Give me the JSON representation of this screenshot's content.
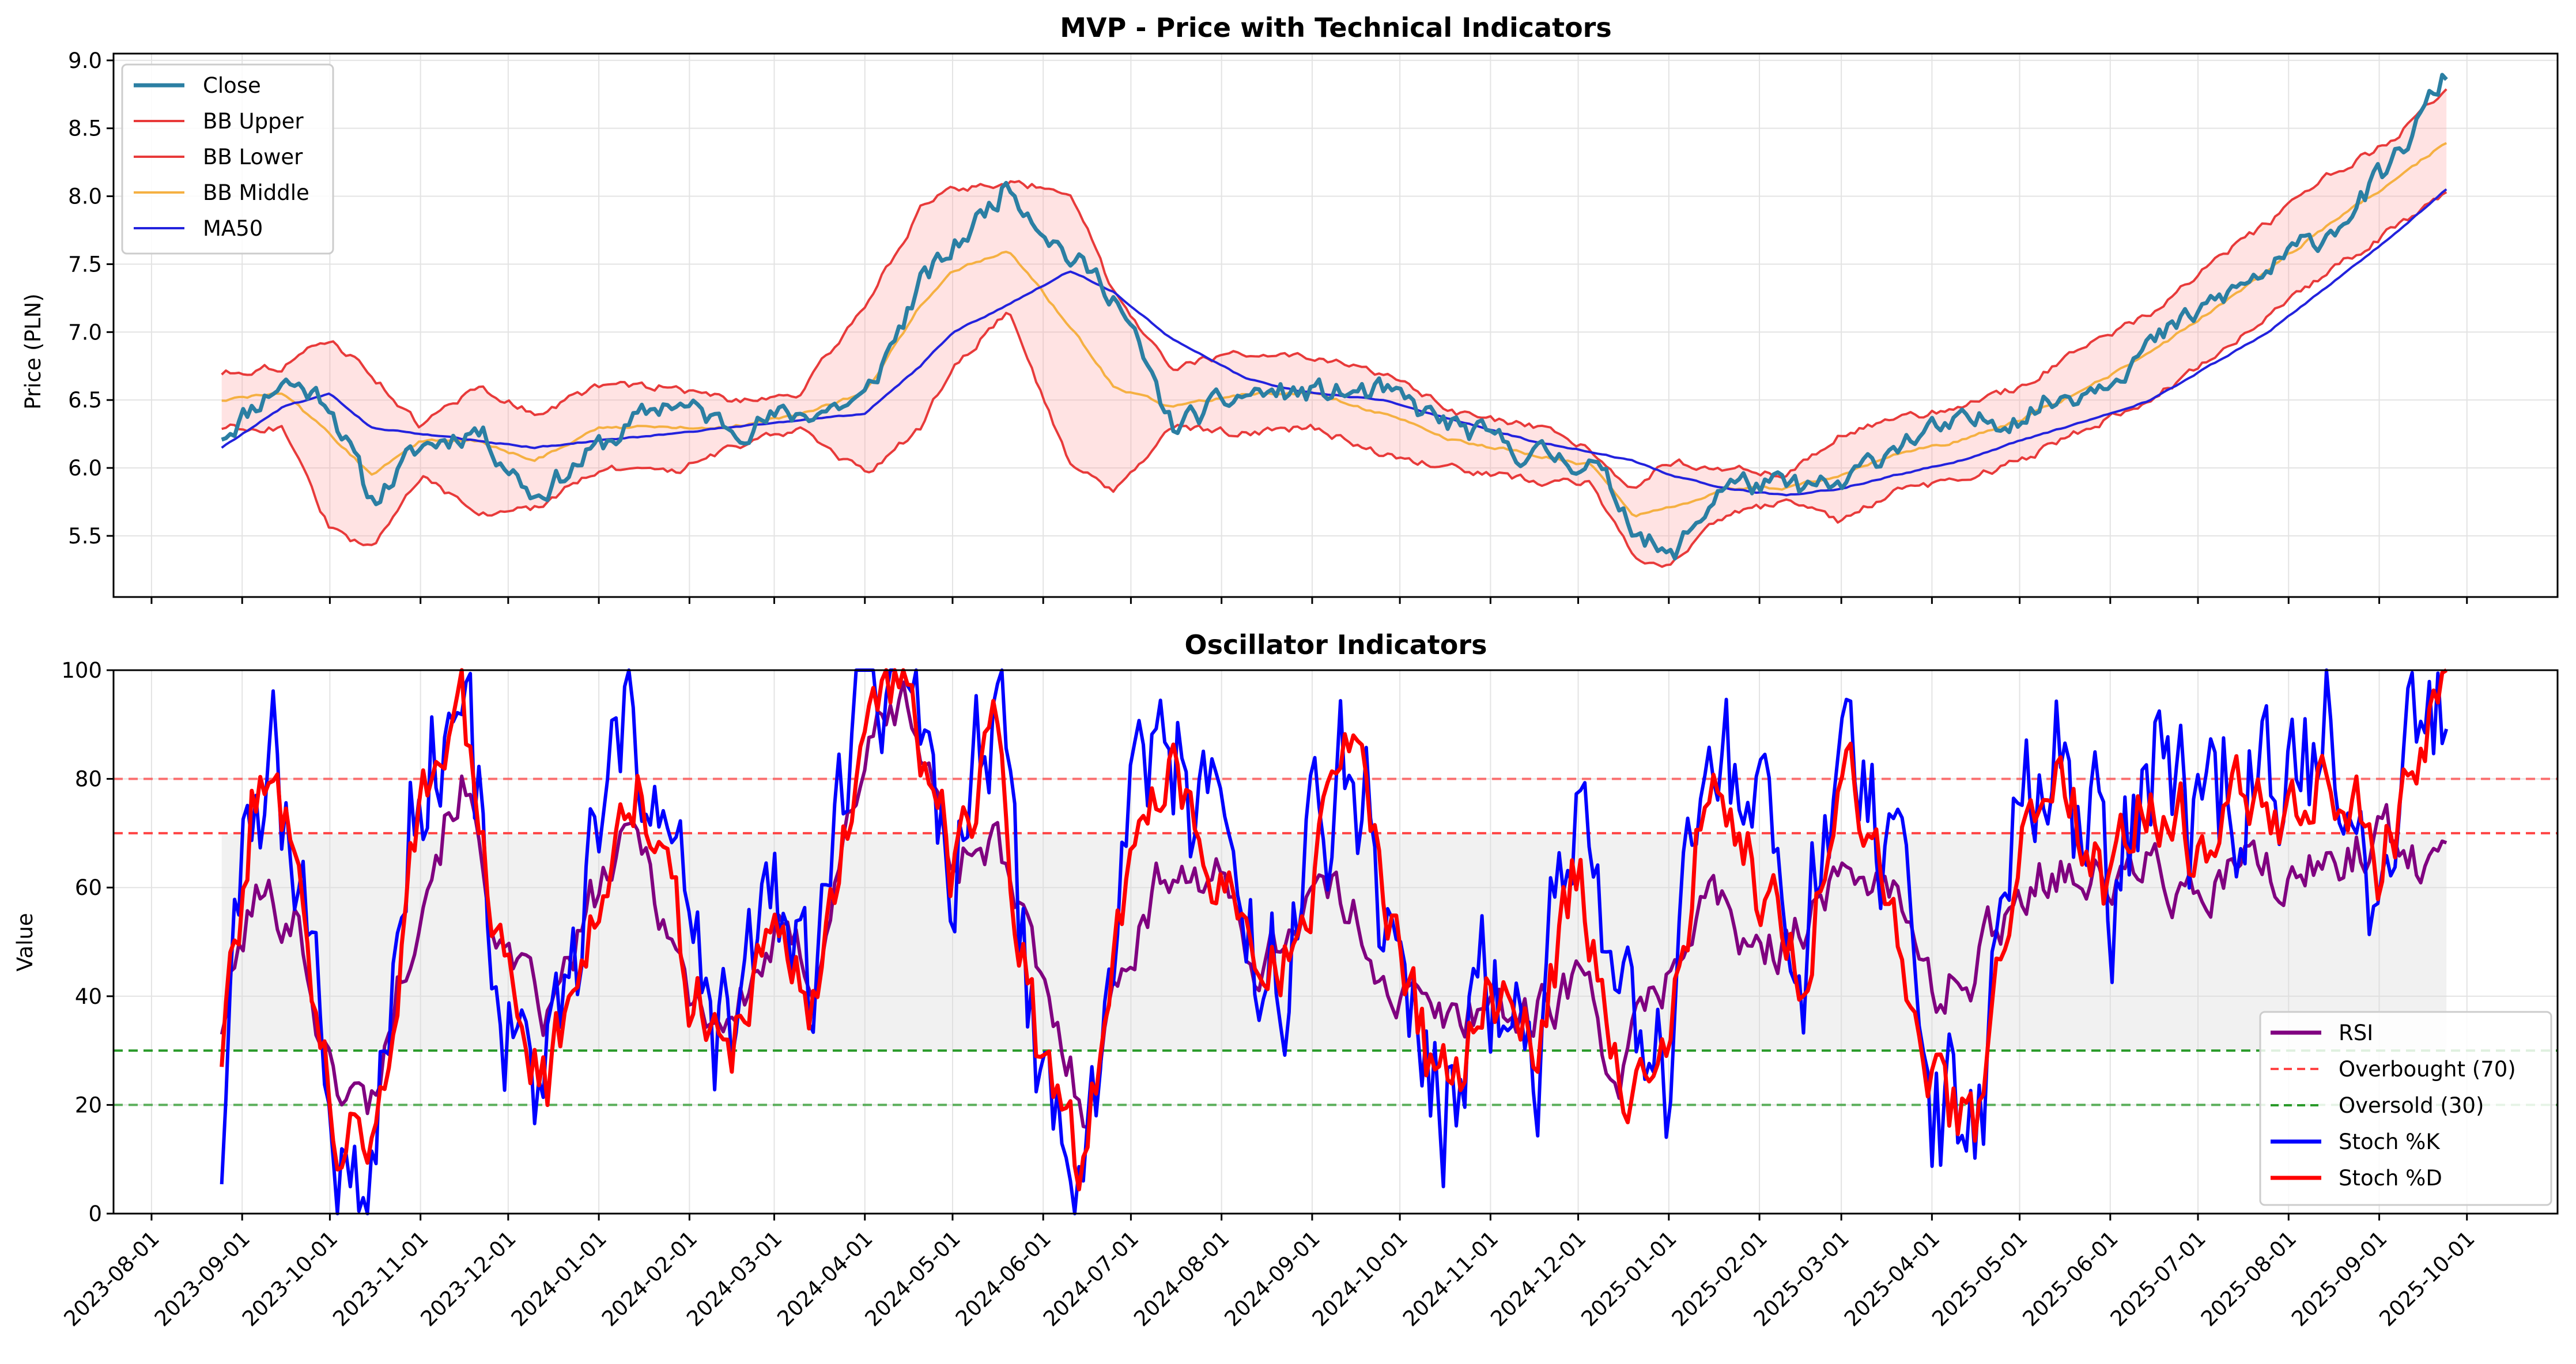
{
  "chart_data": [
    {
      "type": "line",
      "title": "MVP - Price with Technical Indicators",
      "xlabel": "",
      "ylabel": "Price (PLN)",
      "ylim": [
        5.05,
        9.05
      ],
      "yticks": [
        "5.5",
        "6.0",
        "6.5",
        "7.0",
        "7.5",
        "8.0",
        "8.5",
        "9.0"
      ],
      "x_start": "2023-08-25",
      "x_end": "2025-09-24",
      "grid": true,
      "legend_position": "upper-left",
      "fill_between": [
        "BB Upper",
        "BB Lower"
      ],
      "x_knots": [
        "2023-08-25",
        "2023-09-15",
        "2023-10-01",
        "2023-10-15",
        "2023-11-01",
        "2023-11-20",
        "2023-12-10",
        "2024-01-01",
        "2024-01-25",
        "2024-02-15",
        "2024-03-10",
        "2024-04-01",
        "2024-04-20",
        "2024-05-01",
        "2024-05-20",
        "2024-06-10",
        "2024-06-25",
        "2024-07-15",
        "2024-08-10",
        "2024-09-01",
        "2024-09-25",
        "2024-10-20",
        "2024-11-15",
        "2024-12-05",
        "2024-12-20",
        "2025-01-01",
        "2025-01-20",
        "2025-02-10",
        "2025-03-01",
        "2025-03-20",
        "2025-04-10",
        "2025-05-01",
        "2025-05-25",
        "2025-06-15",
        "2025-07-05",
        "2025-07-25",
        "2025-08-15",
        "2025-09-05",
        "2025-09-24"
      ],
      "series": [
        {
          "name": "Close",
          "color": "#2b7fa3",
          "values": [
            6.25,
            6.65,
            6.5,
            5.75,
            6.15,
            6.3,
            5.8,
            6.15,
            6.5,
            6.3,
            6.4,
            6.5,
            7.35,
            7.6,
            8.1,
            7.55,
            7.3,
            6.3,
            6.55,
            6.55,
            6.55,
            6.3,
            6.1,
            6.05,
            5.6,
            5.3,
            5.9,
            5.85,
            5.85,
            6.2,
            6.3,
            6.4,
            6.6,
            6.9,
            7.2,
            7.45,
            7.75,
            8.2,
            8.9
          ]
        },
        {
          "name": "BB Upper",
          "color": "#e83a3a",
          "values": [
            6.7,
            6.75,
            6.95,
            6.7,
            6.3,
            6.6,
            6.4,
            6.6,
            6.6,
            6.5,
            6.55,
            7.2,
            7.9,
            8.05,
            8.1,
            8.05,
            7.3,
            6.75,
            6.85,
            6.8,
            6.7,
            6.4,
            6.3,
            6.15,
            5.85,
            6.05,
            6.0,
            5.95,
            6.25,
            6.35,
            6.45,
            6.6,
            6.9,
            7.15,
            7.5,
            7.8,
            8.15,
            8.4,
            8.8
          ]
        },
        {
          "name": "BB Lower",
          "color": "#e83a3a",
          "values": [
            6.3,
            6.3,
            5.55,
            5.4,
            5.95,
            5.65,
            5.7,
            6.0,
            5.95,
            6.15,
            6.3,
            5.95,
            6.3,
            6.75,
            7.15,
            6.05,
            5.85,
            6.3,
            6.25,
            6.3,
            6.1,
            6.0,
            5.9,
            5.9,
            5.35,
            5.3,
            5.65,
            5.75,
            5.6,
            5.85,
            5.9,
            6.05,
            6.3,
            6.5,
            6.8,
            7.1,
            7.45,
            7.75,
            8.0
          ]
        },
        {
          "name": "BB Middle",
          "color": "#f5b042",
          "values": [
            6.5,
            6.55,
            6.25,
            5.95,
            6.2,
            6.2,
            6.05,
            6.3,
            6.3,
            6.3,
            6.4,
            6.55,
            7.2,
            7.45,
            7.6,
            7.05,
            6.6,
            6.45,
            6.55,
            6.55,
            6.4,
            6.2,
            6.1,
            6.02,
            5.65,
            5.7,
            5.85,
            5.85,
            5.95,
            6.1,
            6.2,
            6.35,
            6.6,
            6.85,
            7.15,
            7.45,
            7.8,
            8.1,
            8.4
          ]
        },
        {
          "name": "MA50",
          "color": "#2222dd",
          "values": [
            6.15,
            6.45,
            6.55,
            6.3,
            6.25,
            6.2,
            6.15,
            6.2,
            6.25,
            6.3,
            6.35,
            6.4,
            6.75,
            7.0,
            7.2,
            7.45,
            7.3,
            6.95,
            6.65,
            6.55,
            6.5,
            6.35,
            6.2,
            6.12,
            6.05,
            5.95,
            5.85,
            5.8,
            5.85,
            5.95,
            6.05,
            6.2,
            6.35,
            6.5,
            6.75,
            7.0,
            7.35,
            7.7,
            8.05
          ]
        }
      ]
    },
    {
      "type": "line",
      "title": "Oscillator Indicators",
      "xlabel": "",
      "ylabel": "Value",
      "ylim": [
        0,
        100
      ],
      "yticks": [
        "0",
        "20",
        "40",
        "60",
        "80",
        "100"
      ],
      "x_start": "2023-08-25",
      "x_end": "2025-09-24",
      "grid": true,
      "legend_position": "lower-right",
      "shaded_band": [
        30,
        70
      ],
      "x_tick_labels": [
        "2023-08-01",
        "2023-09-01",
        "2023-10-01",
        "2023-11-01",
        "2023-12-01",
        "2024-01-01",
        "2024-02-01",
        "2024-03-01",
        "2024-04-01",
        "2024-05-01",
        "2024-06-01",
        "2024-07-01",
        "2024-08-01",
        "2024-09-01",
        "2024-10-01",
        "2024-11-01",
        "2024-12-01",
        "2025-01-01",
        "2025-02-01",
        "2025-03-01",
        "2025-04-01",
        "2025-05-01",
        "2025-06-01",
        "2025-07-01",
        "2025-08-01",
        "2025-09-01",
        "2025-10-01"
      ],
      "x_knots": [
        "2023-08-25",
        "2023-09-05",
        "2023-09-20",
        "2023-10-01",
        "2023-10-15",
        "2023-11-01",
        "2023-11-15",
        "2023-12-01",
        "2023-12-15",
        "2024-01-01",
        "2024-01-15",
        "2024-02-01",
        "2024-02-15",
        "2024-03-01",
        "2024-03-15",
        "2024-04-01",
        "2024-04-15",
        "2024-05-01",
        "2024-05-15",
        "2024-06-01",
        "2024-06-15",
        "2024-07-01",
        "2024-07-15",
        "2024-08-01",
        "2024-08-15",
        "2024-09-01",
        "2024-09-15",
        "2024-10-01",
        "2024-10-15",
        "2024-11-01",
        "2024-11-15",
        "2024-12-01",
        "2024-12-15",
        "2025-01-01",
        "2025-01-15",
        "2025-02-01",
        "2025-02-15",
        "2025-03-01",
        "2025-03-15",
        "2025-04-01",
        "2025-04-15",
        "2025-05-01",
        "2025-05-15",
        "2025-06-01",
        "2025-06-15",
        "2025-07-01",
        "2025-07-15",
        "2025-08-01",
        "2025-08-15",
        "2025-09-01",
        "2025-09-15",
        "2025-09-24"
      ],
      "series": [
        {
          "name": "RSI",
          "color": "#800080",
          "values": [
            35,
            58,
            55,
            25,
            20,
            60,
            80,
            45,
            35,
            60,
            70,
            40,
            35,
            50,
            45,
            85,
            95,
            65,
            70,
            40,
            20,
            50,
            65,
            60,
            45,
            60,
            55,
            40,
            35,
            40,
            35,
            45,
            25,
            45,
            60,
            45,
            55,
            60,
            65,
            40,
            45,
            60,
            65,
            60,
            65,
            55,
            65,
            60,
            65,
            70,
            65,
            75
          ]
        },
        {
          "name": "Stoch %K",
          "color": "#0000ff",
          "values": [
            12,
            82,
            75,
            15,
            5,
            88,
            95,
            35,
            20,
            65,
            90,
            45,
            25,
            60,
            35,
            95,
            100,
            65,
            90,
            20,
            5,
            75,
            85,
            70,
            35,
            65,
            90,
            45,
            15,
            45,
            25,
            70,
            25,
            20,
            95,
            60,
            40,
            90,
            60,
            20,
            5,
            80,
            85,
            55,
            85,
            70,
            80,
            75,
            90,
            60,
            95,
            100
          ]
        },
        {
          "name": "Stoch %D",
          "color": "#ff0000",
          "values": [
            30,
            78,
            72,
            20,
            8,
            80,
            90,
            40,
            25,
            60,
            85,
            40,
            30,
            55,
            40,
            90,
            98,
            62,
            85,
            25,
            8,
            70,
            80,
            65,
            40,
            60,
            85,
            45,
            20,
            40,
            30,
            65,
            25,
            25,
            85,
            60,
            45,
            85,
            60,
            25,
            12,
            75,
            80,
            55,
            80,
            68,
            75,
            70,
            85,
            62,
            85,
            95
          ]
        },
        {
          "name": "Overbought (70)",
          "color": "#ff4444",
          "values": [
            70
          ]
        },
        {
          "name": "Oversold (30)",
          "color": "#2a9a2a",
          "values": [
            30
          ]
        }
      ],
      "ref_lines": [
        80,
        20
      ]
    }
  ]
}
